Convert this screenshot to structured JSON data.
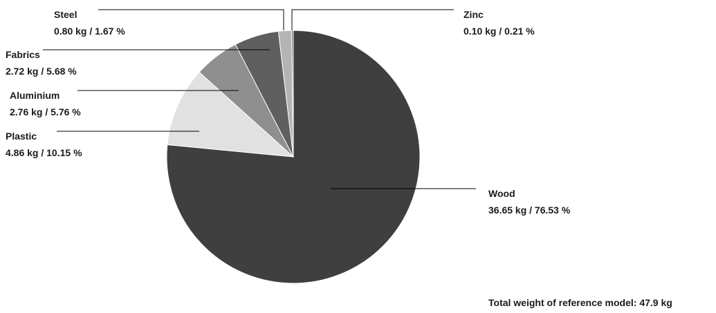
{
  "chart_data": {
    "type": "pie",
    "start": "12 o'clock",
    "direction": "clockwise",
    "slices": [
      {
        "label": "Wood",
        "value_kg": 36.65,
        "percent": 76.53,
        "value_text": "36.65 kg / 76.53 %",
        "color": "#3f3f3f"
      },
      {
        "label": "Plastic",
        "value_kg": 4.86,
        "percent": 10.15,
        "value_text": "4.86 kg / 10.15 %",
        "color": "#e1e1e1"
      },
      {
        "label": "Aluminium",
        "value_kg": 2.76,
        "percent": 5.76,
        "value_text": "2.76 kg / 5.76 %",
        "color": "#8f8f8f"
      },
      {
        "label": "Fabrics",
        "value_kg": 2.72,
        "percent": 5.68,
        "value_text": "2.72 kg / 5.68 %",
        "color": "#5f5f5f"
      },
      {
        "label": "Steel",
        "value_kg": 0.8,
        "percent": 1.67,
        "value_text": "0.80 kg / 1.67 %",
        "color": "#b4b4b4"
      },
      {
        "label": "Zinc",
        "value_kg": 0.1,
        "percent": 0.21,
        "value_text": "0.10 kg / 0.21 %",
        "color": "#6a6a6a"
      }
    ],
    "annotation": "Total weight of reference model: 47.9 kg"
  }
}
